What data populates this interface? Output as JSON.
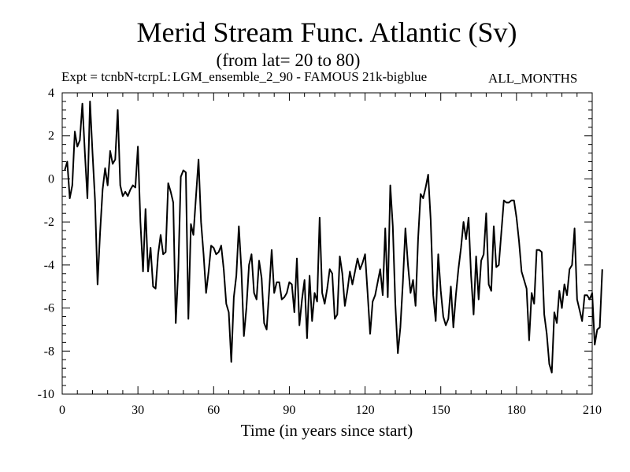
{
  "chart_data": {
    "type": "line",
    "title": "Merid Stream Func. Atlantic (Sv)",
    "subtitle": "(from lat= 20 to 80)",
    "expt_label": "Expt = tcnbN-tcrpL:",
    "expt_name": "LGM_ensemble_2_90 - FAMOUS 21k-bigblue",
    "months_label": "ALL_MONTHS",
    "xlabel": "Time (in years since start)",
    "ylabel": "",
    "xlim": [
      0,
      210
    ],
    "ylim": [
      -10,
      4
    ],
    "x_ticks": [
      0,
      30,
      60,
      90,
      120,
      150,
      180,
      210
    ],
    "y_ticks": [
      4,
      2,
      0,
      -2,
      -4,
      -6,
      -8,
      -10
    ],
    "x_tick_labels": [
      "0",
      "30",
      "60",
      "90",
      "120",
      "150",
      "180",
      "210"
    ],
    "y_tick_labels": [
      "4",
      "2",
      "0",
      "-2",
      "-4",
      "-6",
      "-8",
      "-10"
    ],
    "series": [
      {
        "name": "Merid Stream Func. Atlantic",
        "x_start": 1,
        "x_step": 1,
        "values": [
          0.4,
          0.8,
          -0.9,
          -0.3,
          2.2,
          1.5,
          1.8,
          3.5,
          1.2,
          -0.9,
          3.6,
          1.2,
          -1.0,
          -4.9,
          -2.5,
          -0.5,
          0.5,
          -0.3,
          1.3,
          0.7,
          0.9,
          3.2,
          -0.3,
          -0.8,
          -0.6,
          -0.8,
          -0.5,
          -0.3,
          -0.4,
          1.5,
          -2.0,
          -4.3,
          -1.4,
          -4.3,
          -3.2,
          -5.0,
          -5.1,
          -3.5,
          -2.6,
          -3.5,
          -3.4,
          -0.2,
          -0.6,
          -1.1,
          -6.7,
          -4.2,
          0.1,
          0.4,
          0.3,
          -6.5,
          -2.1,
          -2.6,
          -0.8,
          0.9,
          -2.0,
          -3.5,
          -5.3,
          -4.3,
          -3.1,
          -3.2,
          -3.5,
          -3.4,
          -3.1,
          -4.2,
          -5.8,
          -6.2,
          -8.5,
          -5.5,
          -4.5,
          -2.2,
          -4.2,
          -7.3,
          -6.0,
          -4.0,
          -3.5,
          -5.3,
          -5.6,
          -3.8,
          -4.6,
          -6.7,
          -7.0,
          -5.2,
          -3.3,
          -5.3,
          -4.8,
          -4.8,
          -5.6,
          -5.5,
          -5.3,
          -4.8,
          -4.9,
          -6.2,
          -3.7,
          -6.8,
          -5.6,
          -4.7,
          -7.4,
          -4.5,
          -6.6,
          -5.3,
          -5.7,
          -1.8,
          -5.3,
          -5.8,
          -5.1,
          -4.2,
          -4.4,
          -6.5,
          -6.3,
          -3.6,
          -4.4,
          -5.9,
          -5.2,
          -4.3,
          -4.9,
          -4.3,
          -3.7,
          -4.2,
          -3.9,
          -3.5,
          -5.3,
          -7.2,
          -5.7,
          -5.4,
          -4.8,
          -4.2,
          -5.4,
          -2.3,
          -5.5,
          -0.3,
          -2.2,
          -5.8,
          -8.1,
          -6.9,
          -4.8,
          -2.3,
          -4.0,
          -5.3,
          -4.7,
          -5.9,
          -2.8,
          -0.7,
          -0.9,
          -0.4,
          0.2,
          -1.9,
          -5.4,
          -6.6,
          -3.5,
          -5.2,
          -6.4,
          -6.8,
          -6.5,
          -5.0,
          -6.9,
          -5.4,
          -4.2,
          -3.2,
          -2.0,
          -2.8,
          -1.8,
          -4.5,
          -6.3,
          -3.6,
          -5.6,
          -3.8,
          -3.5,
          -1.6,
          -4.9,
          -5.2,
          -2.2,
          -4.1,
          -4.0,
          -2.5,
          -1.0,
          -1.1,
          -1.1,
          -1.0,
          -1.0,
          -1.8,
          -2.9,
          -4.3,
          -4.7,
          -5.1,
          -7.5,
          -5.3,
          -5.8,
          -3.3,
          -3.3,
          -3.4,
          -6.3,
          -7.2,
          -8.6,
          -9.0,
          -6.2,
          -6.7,
          -5.2,
          -6.0,
          -4.9,
          -5.4,
          -4.2,
          -4.0,
          -2.3,
          -5.6,
          -6.1,
          -6.6,
          -5.4,
          -5.4,
          -5.6,
          -5.3,
          -7.7,
          -7.0,
          -6.9,
          -4.2
        ]
      }
    ],
    "line_color": "#000000"
  }
}
